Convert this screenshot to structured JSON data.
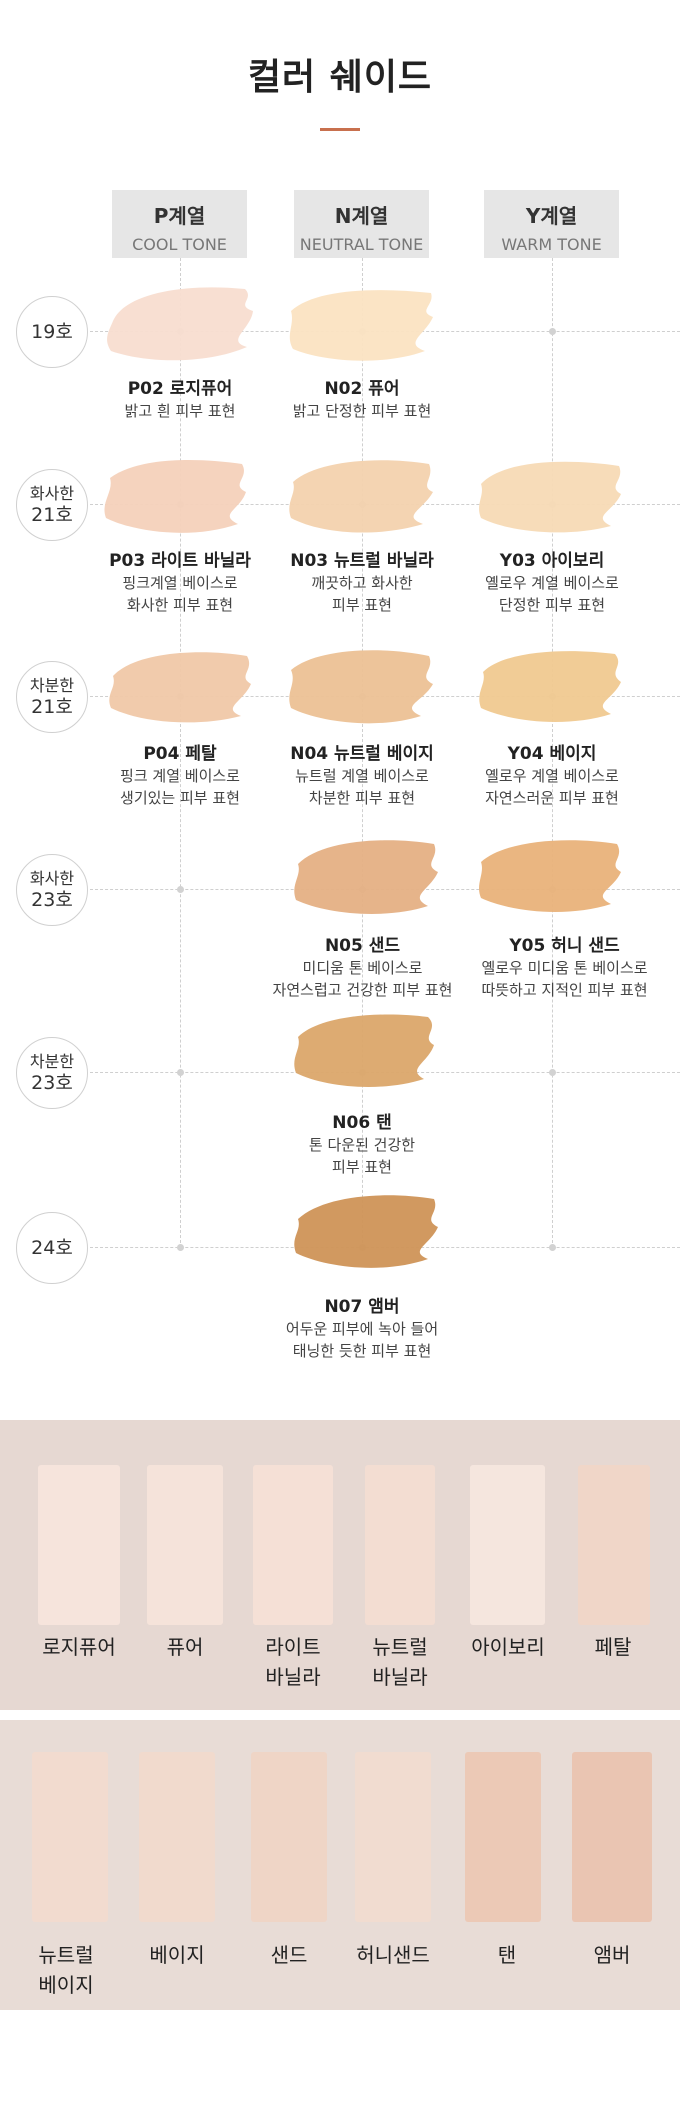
{
  "title": "컬러 쉐이드",
  "columns": [
    {
      "title": "P계열",
      "subtitle": "COOL TONE"
    },
    {
      "title": "N계열",
      "subtitle": "NEUTRAL TONE"
    },
    {
      "title": "Y계열",
      "subtitle": "WARM TONE"
    }
  ],
  "rows": [
    {
      "line1": "",
      "line2": "19호"
    },
    {
      "line1": "화사한",
      "line2": "21호"
    },
    {
      "line1": "차분한",
      "line2": "21호"
    },
    {
      "line1": "화사한",
      "line2": "23호"
    },
    {
      "line1": "차분한",
      "line2": "23호"
    },
    {
      "line1": "",
      "line2": "24호"
    }
  ],
  "shades": [
    {
      "name": "P02 로지퓨어",
      "desc1": "밝고 흰 피부 표현",
      "desc2": "",
      "desc3": "",
      "color": "#f8ddd0"
    },
    {
      "name": "N02 퓨어",
      "desc1": "밝고 단정한 피부 표현",
      "desc2": "",
      "desc3": "",
      "color": "#fbe3c2"
    },
    {
      "name": "P03 라이트 바닐라",
      "desc1": "핑크계열 베이스로",
      "desc2": "화사한 피부 표현",
      "desc3": "",
      "color": "#f4d1bb"
    },
    {
      "name": "N03 뉴트럴 바닐라",
      "desc1": "깨끗하고 화사한",
      "desc2": "피부 표현",
      "desc3": "",
      "color": "#f3d2ae"
    },
    {
      "name": "Y03 아이보리",
      "desc1": "옐로우 계열 베이스로",
      "desc2": "단정한 피부 표현",
      "desc3": "",
      "color": "#f7dab5"
    },
    {
      "name": "P04 페탈",
      "desc1": "핑크 계열 베이스로",
      "desc2": "생기있는 피부 표현",
      "desc3": "",
      "color": "#f0c8a8"
    },
    {
      "name": "N04 뉴트럴 베이지",
      "desc1": "뉴트럴 계열 베이스로",
      "desc2": "차분한 피부 표현",
      "desc3": "",
      "color": "#ecc195"
    },
    {
      "name": "Y04 베이지",
      "desc1": "옐로우 계열 베이스로",
      "desc2": "자연스러운 피부 표현",
      "desc3": "",
      "color": "#f0c990"
    },
    {
      "name": "N05 샌드",
      "desc1": "미디움 톤 베이스로",
      "desc2": "자연스럽고 건강한 피부 표현",
      "desc3": "",
      "color": "#e5b084"
    },
    {
      "name": "Y05 허니 샌드",
      "desc1": "옐로우 미디움 톤 베이스로",
      "desc2": "따뜻하고 지적인 피부 표현",
      "desc3": "",
      "color": "#e9b27a"
    },
    {
      "name": "N06 탠",
      "desc1": "톤 다운된 건강한",
      "desc2": "피부 표현",
      "desc3": "",
      "color": "#dba66a"
    },
    {
      "name": "N07 앰버",
      "desc1": "어두운 피부에 녹아 들어",
      "desc2": "태닝한 듯한 피부 표현",
      "desc3": "",
      "color": "#cf9357"
    }
  ],
  "panel1": [
    {
      "line1": "로지퓨어",
      "line2": "",
      "color": "#f6e4dc"
    },
    {
      "line1": "퓨어",
      "line2": "",
      "color": "#f5e3da"
    },
    {
      "line1": "라이트",
      "line2": "바닐라",
      "color": "#f5e0d6"
    },
    {
      "line1": "뉴트럴",
      "line2": "바닐라",
      "color": "#f3ddd2"
    },
    {
      "line1": "아이보리",
      "line2": "",
      "color": "#f5e6de"
    },
    {
      "line1": "페탈",
      "line2": "",
      "color": "#f0d6c8"
    }
  ],
  "panel2": [
    {
      "line1": "뉴트럴",
      "line2": "베이지",
      "color": "#f2dbcf"
    },
    {
      "line1": "베이지",
      "line2": "",
      "color": "#f1dacd"
    },
    {
      "line1": "샌드",
      "line2": "",
      "color": "#efd5c6"
    },
    {
      "line1": "허니샌드",
      "line2": "",
      "color": "#f1dcd0"
    },
    {
      "line1": "탠",
      "line2": "",
      "color": "#ecc9b6"
    },
    {
      "line1": "앰버",
      "line2": "",
      "color": "#eac5b2"
    }
  ]
}
